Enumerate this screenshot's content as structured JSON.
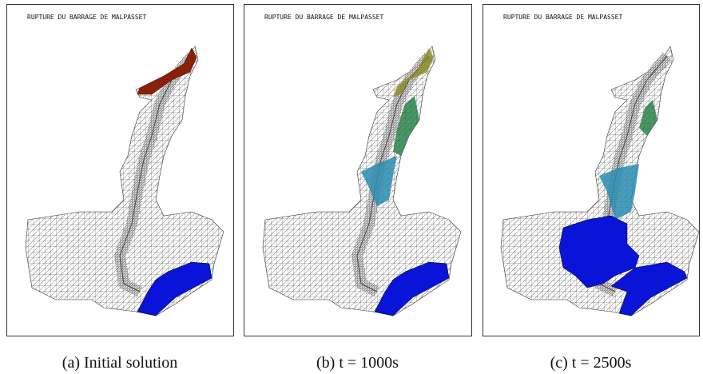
{
  "panels": [
    {
      "title": "RUPTURE DU BARRAGE DE MALPASSET",
      "caption": "(a) Initial solution"
    },
    {
      "title": "RUPTURE DU BARRAGE DE MALPASSET",
      "caption": "(b) t = 1000s"
    },
    {
      "title": "RUPTURE DU BARRAGE DE MALPASSET",
      "caption": "(c) t = 2500s"
    }
  ]
}
